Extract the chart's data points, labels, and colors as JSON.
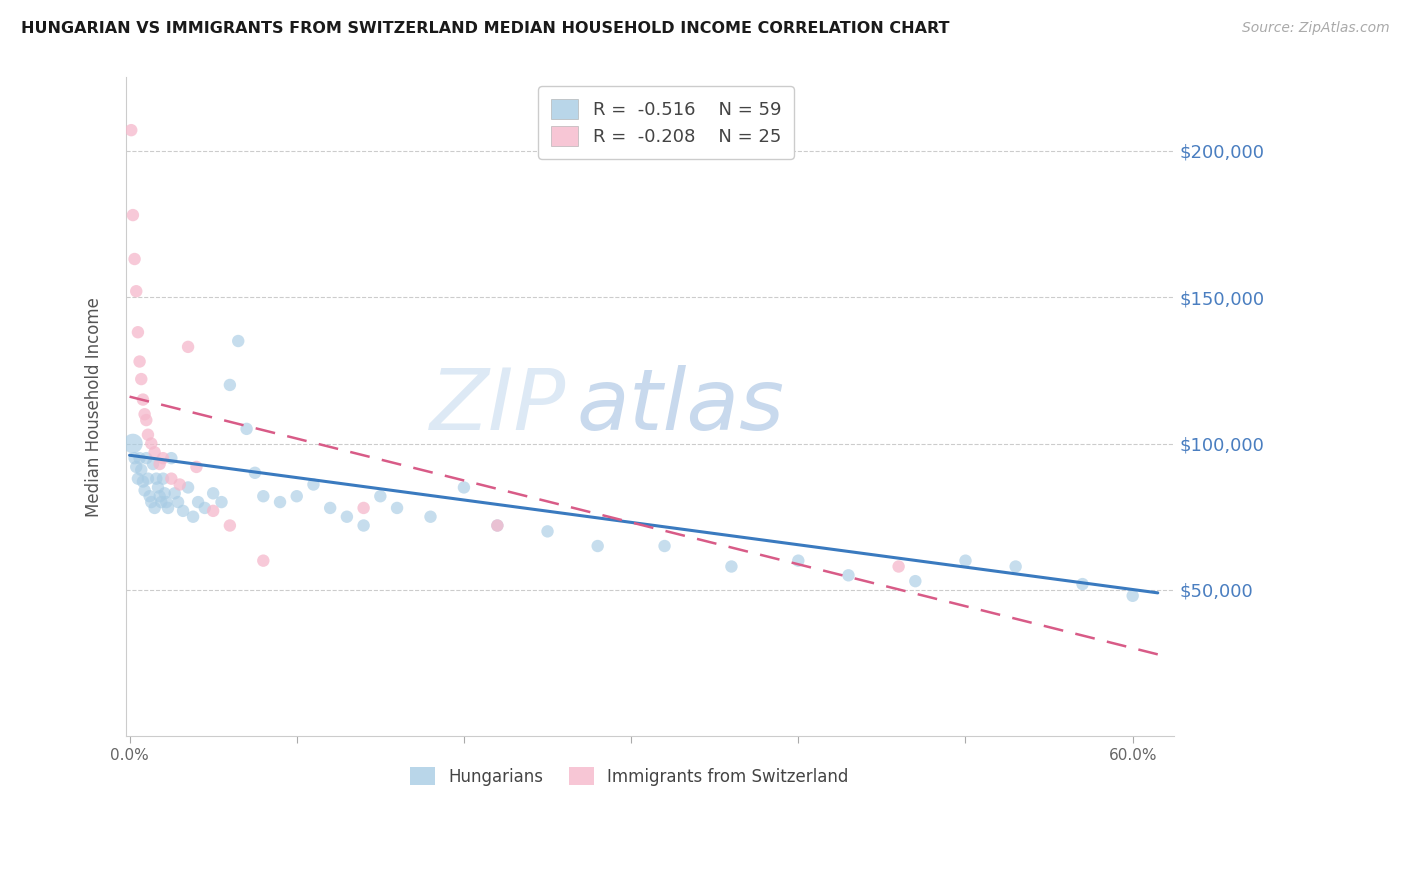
{
  "title": "HUNGARIAN VS IMMIGRANTS FROM SWITZERLAND MEDIAN HOUSEHOLD INCOME CORRELATION CHART",
  "source": "Source: ZipAtlas.com",
  "ylabel": "Median Household Income",
  "ymin": 0,
  "ymax": 225000,
  "xmin": -0.002,
  "xmax": 0.625,
  "blue_R": "-0.516",
  "blue_N": "59",
  "pink_R": "-0.208",
  "pink_N": "25",
  "blue_color": "#a8cce4",
  "pink_color": "#f5b8cb",
  "blue_line_color": "#3a7abf",
  "pink_line_color": "#d85b87",
  "watermark_zip_color": "#dbe9f5",
  "watermark_atlas_color": "#c5dcef",
  "legend_label_blue": "Hungarians",
  "legend_label_pink": "Immigrants from Switzerland",
  "yticks": [
    50000,
    100000,
    150000,
    200000
  ],
  "ytick_labels": [
    "$50,000",
    "$100,000",
    "$150,000",
    "$200,000"
  ],
  "xticks": [
    0.0,
    0.1,
    0.2,
    0.3,
    0.4,
    0.5,
    0.6
  ],
  "xtick_labels": [
    "0.0%",
    "",
    "",
    "",
    "",
    "",
    "60.0%"
  ],
  "blue_line_x0": 0.0,
  "blue_line_x1": 0.615,
  "blue_line_y0": 96000,
  "blue_line_y1": 49000,
  "pink_line_x0": 0.0,
  "pink_line_x1": 0.615,
  "pink_line_y0": 116000,
  "pink_line_y1": 28000,
  "blue_x": [
    0.002,
    0.004,
    0.005,
    0.006,
    0.007,
    0.008,
    0.009,
    0.01,
    0.011,
    0.012,
    0.013,
    0.014,
    0.015,
    0.016,
    0.017,
    0.018,
    0.019,
    0.02,
    0.021,
    0.022,
    0.023,
    0.025,
    0.027,
    0.029,
    0.032,
    0.035,
    0.038,
    0.041,
    0.045,
    0.05,
    0.055,
    0.06,
    0.065,
    0.07,
    0.075,
    0.08,
    0.09,
    0.1,
    0.11,
    0.12,
    0.13,
    0.14,
    0.15,
    0.16,
    0.18,
    0.2,
    0.22,
    0.25,
    0.28,
    0.32,
    0.36,
    0.4,
    0.43,
    0.47,
    0.5,
    0.53,
    0.57,
    0.6,
    0.003
  ],
  "blue_y": [
    100000,
    92000,
    88000,
    95000,
    91000,
    87000,
    84000,
    95000,
    88000,
    82000,
    80000,
    93000,
    78000,
    88000,
    85000,
    82000,
    80000,
    88000,
    83000,
    80000,
    78000,
    95000,
    83000,
    80000,
    77000,
    85000,
    75000,
    80000,
    78000,
    83000,
    80000,
    120000,
    135000,
    105000,
    90000,
    82000,
    80000,
    82000,
    86000,
    78000,
    75000,
    72000,
    82000,
    78000,
    75000,
    85000,
    72000,
    70000,
    65000,
    65000,
    58000,
    60000,
    55000,
    53000,
    60000,
    58000,
    52000,
    48000,
    95000
  ],
  "blue_size": [
    200,
    80,
    80,
    80,
    80,
    80,
    80,
    80,
    80,
    80,
    80,
    80,
    80,
    80,
    80,
    80,
    80,
    80,
    80,
    80,
    80,
    80,
    80,
    80,
    80,
    80,
    80,
    80,
    80,
    80,
    80,
    80,
    80,
    80,
    80,
    80,
    80,
    80,
    80,
    80,
    80,
    80,
    80,
    80,
    80,
    80,
    80,
    80,
    80,
    80,
    80,
    80,
    80,
    80,
    80,
    80,
    80,
    80,
    80
  ],
  "pink_x": [
    0.001,
    0.002,
    0.003,
    0.004,
    0.005,
    0.006,
    0.007,
    0.008,
    0.009,
    0.01,
    0.011,
    0.013,
    0.015,
    0.018,
    0.02,
    0.025,
    0.03,
    0.035,
    0.04,
    0.05,
    0.06,
    0.08,
    0.14,
    0.22,
    0.46
  ],
  "pink_y": [
    207000,
    178000,
    163000,
    152000,
    138000,
    128000,
    122000,
    115000,
    110000,
    108000,
    103000,
    100000,
    97000,
    93000,
    95000,
    88000,
    86000,
    133000,
    92000,
    77000,
    72000,
    60000,
    78000,
    72000,
    58000
  ],
  "pink_size": [
    80,
    80,
    80,
    80,
    80,
    80,
    80,
    80,
    80,
    80,
    80,
    80,
    80,
    80,
    80,
    80,
    80,
    80,
    80,
    80,
    80,
    80,
    80,
    80,
    80
  ]
}
